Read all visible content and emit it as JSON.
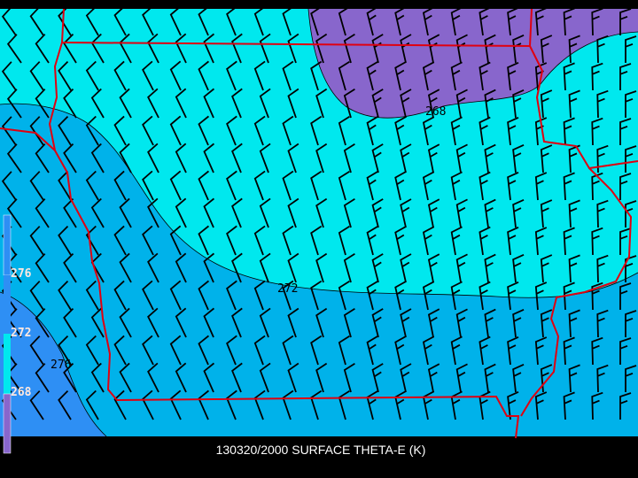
{
  "title": "130320/2000 SURFACE THETA-E (K)",
  "field": "theta-e",
  "units": "K",
  "colorbar": {
    "levels": [
      {
        "label": "276",
        "color": "#2e8ff4"
      },
      {
        "label": "272",
        "color": "#00b2ea"
      },
      {
        "label": "268",
        "color": "#00e8ee"
      },
      {
        "label": "",
        "color": "#8866cc"
      }
    ]
  },
  "contour_labels": [
    "268",
    "272",
    "276"
  ],
  "colors": {
    "border": "#e00010",
    "barb": "#000000",
    "contour": "#000000",
    "background": "#000000"
  },
  "wind_barbs": {
    "predominant_direction": "northwest",
    "speed_kt": "10-15"
  }
}
